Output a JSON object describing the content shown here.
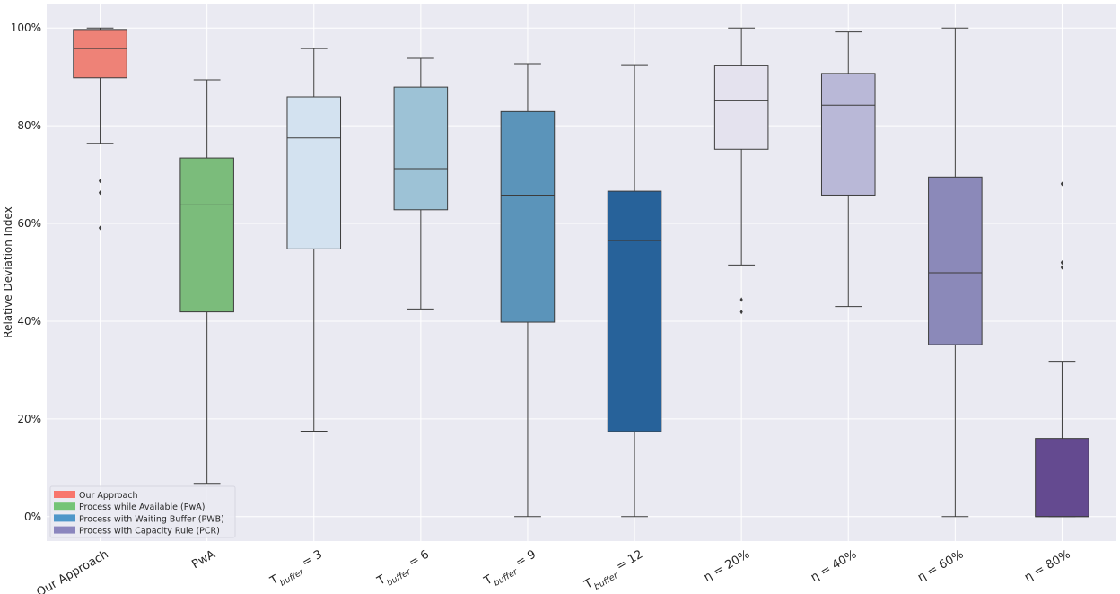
{
  "chart_data": {
    "type": "boxplot",
    "title": "",
    "xlabel": "",
    "ylabel": "Relative Deviation Index",
    "ylim": [
      -0.05,
      1.05
    ],
    "y_ticks": [
      "0%",
      "20%",
      "40%",
      "60%",
      "80%",
      "100%"
    ],
    "y_tick_values": [
      0,
      0.2,
      0.4,
      0.6,
      0.8,
      1.0
    ],
    "grid": true,
    "legend_position": "bottom-left",
    "legend": [
      {
        "label": "Our Approach",
        "color": "#f8766d"
      },
      {
        "label": "Process while Available (PwA)",
        "color": "#74c476"
      },
      {
        "label": "Process with Waiting Buffer (PWB)",
        "color": "#4f97c9"
      },
      {
        "label": "Process with Capacity Rule (PCR)",
        "color": "#8b86be"
      }
    ],
    "boxes": [
      {
        "category": "Our Approach",
        "base": "Our Approach",
        "sub": "",
        "rest": "",
        "color": "#ee8277",
        "q1": 0.898,
        "median": 0.958,
        "q3": 0.997,
        "whisker_low": 0.764,
        "whisker_high": 1.0,
        "outliers": [
          0.687,
          0.663,
          0.591
        ]
      },
      {
        "category": "PwA",
        "base": "PwA",
        "sub": "",
        "rest": "",
        "color": "#7bbc7b",
        "q1": 0.419,
        "median": 0.638,
        "q3": 0.734,
        "whisker_low": 0.068,
        "whisker_high": 0.894,
        "outliers": []
      },
      {
        "category": "T_buffer = 3",
        "base": "T",
        "sub": "buffer",
        "rest": " = 3",
        "color": "#d3e2f0",
        "q1": 0.548,
        "median": 0.775,
        "q3": 0.859,
        "whisker_low": 0.175,
        "whisker_high": 0.958,
        "outliers": []
      },
      {
        "category": "T_buffer = 6",
        "base": "T",
        "sub": "buffer",
        "rest": " = 6",
        "color": "#9dc2d6",
        "q1": 0.628,
        "median": 0.712,
        "q3": 0.879,
        "whisker_low": 0.425,
        "whisker_high": 0.938,
        "outliers": []
      },
      {
        "category": "T_buffer = 9",
        "base": "T",
        "sub": "buffer",
        "rest": " = 9",
        "color": "#5b94ba",
        "q1": 0.398,
        "median": 0.658,
        "q3": 0.829,
        "whisker_low": 0.0,
        "whisker_high": 0.927,
        "outliers": []
      },
      {
        "category": "T_buffer = 12",
        "base": "T",
        "sub": "buffer",
        "rest": " = 12",
        "color": "#27629a",
        "q1": 0.174,
        "median": 0.565,
        "q3": 0.666,
        "whisker_low": 0.0,
        "whisker_high": 0.925,
        "outliers": []
      },
      {
        "category": "η = 20%",
        "base": "η = 20%",
        "sub": "",
        "rest": "",
        "color": "#e4e2ee",
        "q1": 0.752,
        "median": 0.851,
        "q3": 0.924,
        "whisker_low": 0.515,
        "whisker_high": 1.0,
        "outliers": [
          0.444,
          0.419
        ]
      },
      {
        "category": "η = 40%",
        "base": "η = 40%",
        "sub": "",
        "rest": "",
        "color": "#b9b8d7",
        "q1": 0.658,
        "median": 0.842,
        "q3": 0.907,
        "whisker_low": 0.43,
        "whisker_high": 0.992,
        "outliers": []
      },
      {
        "category": "η = 60%",
        "base": "η = 60%",
        "sub": "",
        "rest": "",
        "color": "#8b89b9",
        "q1": 0.352,
        "median": 0.499,
        "q3": 0.695,
        "whisker_low": 0.0,
        "whisker_high": 1.0,
        "outliers": []
      },
      {
        "category": "η = 80%",
        "base": "η = 80%",
        "sub": "",
        "rest": "",
        "color": "#644a90",
        "q1": 0.0,
        "median": 0.0,
        "q3": 0.16,
        "whisker_low": 0.0,
        "whisker_high": 0.318,
        "outliers": [
          0.681,
          0.52,
          0.51
        ]
      }
    ]
  }
}
